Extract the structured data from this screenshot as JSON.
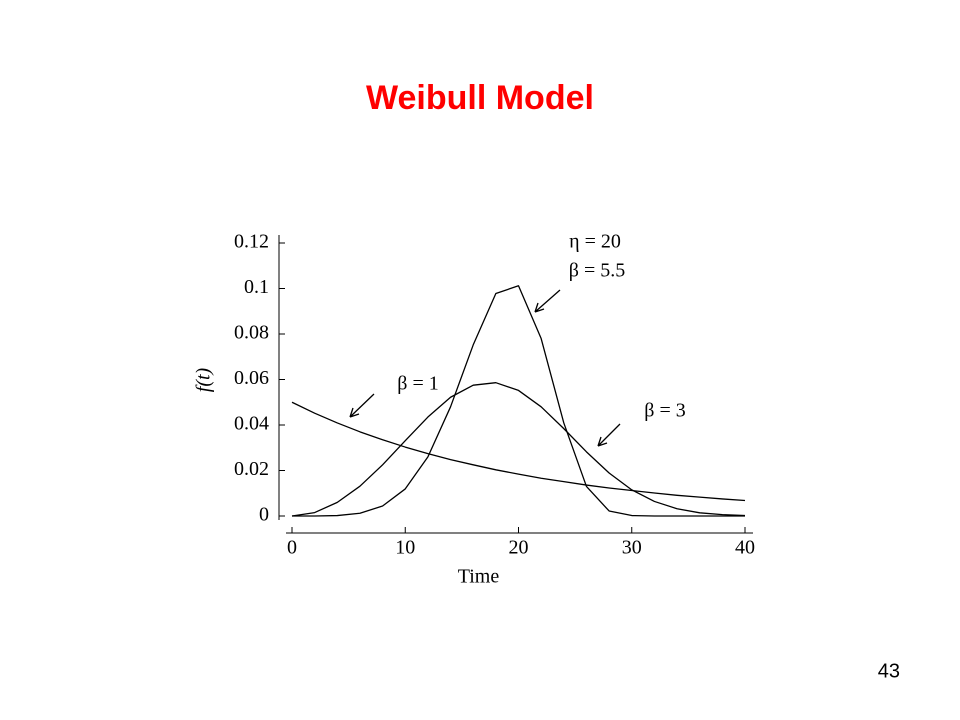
{
  "chart_data": {
    "type": "line",
    "title": "Weibull Model",
    "page_number": "43",
    "xlabel": "Time",
    "ylabel": "f(t)",
    "annotations": [
      "η = 20"
    ],
    "x": [
      0,
      2,
      4,
      6,
      8,
      10,
      12,
      14,
      16,
      18,
      20,
      22,
      24,
      26,
      28,
      30,
      32,
      34,
      36,
      38,
      40
    ],
    "series": [
      {
        "name": "β = 1",
        "color": "#000000",
        "values": [
          0.05,
          0.0452,
          0.0409,
          0.037,
          0.0335,
          0.0303,
          0.0274,
          0.0248,
          0.0225,
          0.0203,
          0.0184,
          0.0166,
          0.0151,
          0.0136,
          0.0123,
          0.0112,
          0.0101,
          0.0091,
          0.0083,
          0.0075,
          0.0068
        ]
      },
      {
        "name": "β = 3",
        "color": "#000000",
        "values": [
          0,
          0.0015,
          0.006,
          0.0131,
          0.0225,
          0.0331,
          0.0435,
          0.0522,
          0.0575,
          0.0586,
          0.0552,
          0.048,
          0.0384,
          0.0282,
          0.0189,
          0.0115,
          0.0064,
          0.0032,
          0.0014,
          0.0006,
          0.0002
        ]
      },
      {
        "name": "β = 5.5",
        "color": "#000000",
        "values": [
          0,
          0,
          0.0002,
          0.0012,
          0.0044,
          0.0119,
          0.026,
          0.048,
          0.0752,
          0.0978,
          0.1012,
          0.078,
          0.0409,
          0.013,
          0.0022,
          0.0002,
          0,
          0,
          0,
          0,
          0
        ]
      }
    ],
    "xlim": [
      0,
      40
    ],
    "xticks": [
      0,
      10,
      20,
      30,
      40
    ],
    "ylim": [
      0,
      0.12
    ],
    "yticks": [
      0,
      0.02,
      0.04,
      0.06,
      0.08,
      0.1,
      0.12
    ]
  }
}
